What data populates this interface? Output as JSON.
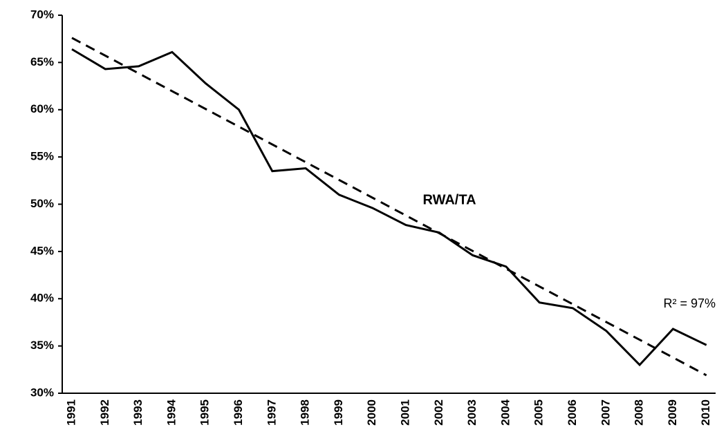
{
  "chart_data": {
    "type": "line",
    "categories": [
      "1991",
      "1992",
      "1993",
      "1994",
      "1995",
      "1996",
      "1997",
      "1998",
      "1999",
      "2000",
      "2001",
      "2002",
      "2003",
      "2004",
      "2005",
      "2006",
      "2007",
      "2008",
      "2009",
      "2010"
    ],
    "series": [
      {
        "name": "RWA/TA",
        "color": "#000000",
        "values": [
          66.4,
          64.3,
          64.6,
          66.1,
          62.8,
          60.0,
          53.5,
          53.8,
          51.0,
          49.6,
          47.8,
          47.0,
          44.6,
          43.4,
          39.6,
          39.0,
          36.6,
          33.0,
          36.8,
          35.1
        ]
      }
    ],
    "trend": {
      "color": "#000000",
      "values": [
        67.6,
        31.9
      ]
    },
    "annotations": [
      "R² = 97%"
    ],
    "ylim": [
      30,
      70
    ],
    "yticks": [
      {
        "value": 30,
        "label": "30%"
      },
      {
        "value": 35,
        "label": "35%"
      },
      {
        "value": 40,
        "label": "40%"
      },
      {
        "value": 45,
        "label": "45%"
      },
      {
        "value": 50,
        "label": "50%"
      },
      {
        "value": 55,
        "label": "55%"
      },
      {
        "value": 60,
        "label": "60%"
      },
      {
        "value": 65,
        "label": "65%"
      },
      {
        "value": 70,
        "label": "70%"
      }
    ],
    "grid": false
  }
}
